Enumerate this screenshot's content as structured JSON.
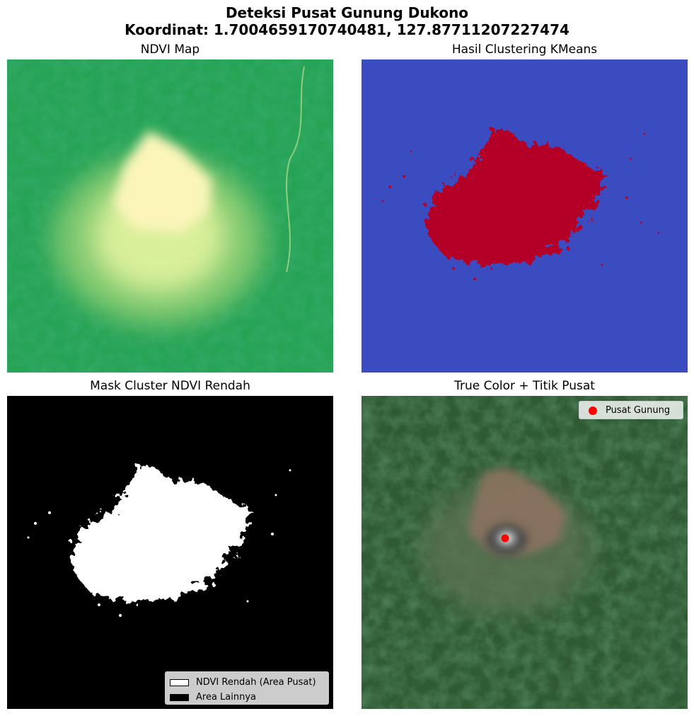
{
  "suptitle": {
    "line1": "Deteksi Pusat Gunung Dukono",
    "line2": "Koordinat: 1.7004659170740481, 127.87711207227474"
  },
  "panels": [
    {
      "title": "NDVI Map"
    },
    {
      "title": "Hasil Clustering KMeans"
    },
    {
      "title": "Mask Cluster NDVI Rendah"
    },
    {
      "title": "True Color + Titik Pusat"
    }
  ],
  "mask_legend": {
    "items": [
      {
        "label": "NDVI Rendah (Area Pusat)",
        "color": "#ffffff"
      },
      {
        "label": "Area Lainnya",
        "color": "#000000"
      }
    ]
  },
  "truecolor_legend": {
    "items": [
      {
        "label": "Pusat Gunung",
        "color": "#ff0000"
      }
    ]
  },
  "colors": {
    "ndvi_high": "#1e9a50",
    "ndvi_low": "#fdf6b4",
    "cluster_background": "#3b4cc0",
    "cluster_low_ndvi": "#b40426",
    "forest": "#2f5a33",
    "peak_marker": "#ff0000"
  }
}
